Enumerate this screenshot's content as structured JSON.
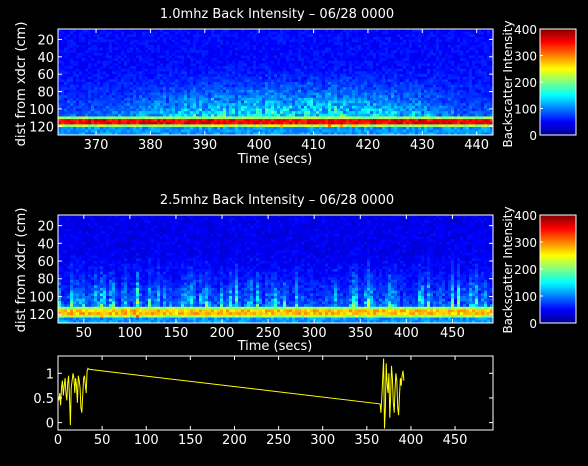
{
  "chart_data": [
    {
      "type": "heatmap",
      "title": "1.0mhz Back Intensity – 06/28 0000",
      "xlabel": "Time (secs)",
      "ylabel": "dist from xdcr (cm)",
      "xlim": [
        363,
        443
      ],
      "ylim": [
        130,
        8
      ],
      "y_reversed": true,
      "xticks": [
        370,
        380,
        390,
        400,
        410,
        420,
        430,
        440
      ],
      "yticks": [
        20,
        40,
        60,
        80,
        100,
        120
      ],
      "colorbar": {
        "label": "Backscatter Intensity",
        "min": 0,
        "max": 400,
        "ticks": [
          0,
          100,
          200,
          300,
          400
        ]
      },
      "description_values": {
        "bottom_band_cm": 115,
        "bottom_band_intensity": 330,
        "background_intensity": 40
      }
    },
    {
      "type": "heatmap",
      "title": "2.5mhz Back Intensity  – 06/28 0000",
      "xlabel": "Time (secs)",
      "ylabel": "dist from xdcr (cm)",
      "xlim": [
        22,
        494
      ],
      "ylim": [
        130,
        8
      ],
      "y_reversed": true,
      "xticks": [
        50,
        100,
        150,
        200,
        250,
        300,
        350,
        400,
        450
      ],
      "yticks": [
        20,
        40,
        60,
        80,
        100,
        120
      ],
      "colorbar": {
        "label": "Backscatter Intensity",
        "min": 0,
        "max": 400,
        "ticks": [
          0,
          100,
          200,
          300,
          400
        ]
      },
      "description_values": {
        "bottom_band_cm": 117,
        "bottom_band_intensity": 250,
        "background_intensity": 30
      }
    },
    {
      "type": "line",
      "title": "",
      "xlabel": "",
      "ylabel": "",
      "xlim": [
        0,
        493
      ],
      "ylim": [
        -0.15,
        1.35
      ],
      "xticks": [
        0,
        50,
        100,
        150,
        200,
        250,
        300,
        350,
        400,
        450
      ],
      "yticks": [
        0,
        0.5,
        1
      ],
      "ytick_labels": [
        "0",
        "0.5",
        "1"
      ],
      "color": "#ffff00",
      "series": [
        {
          "x": [
            1,
            2,
            3,
            4,
            5,
            6,
            7,
            8,
            9,
            10,
            11,
            12,
            13,
            14,
            15,
            16,
            17,
            18,
            19,
            20,
            21,
            22,
            23,
            24,
            25,
            26,
            27,
            28,
            29,
            30,
            31,
            32,
            33,
            34,
            35,
            365,
            366,
            367,
            368,
            369,
            370,
            371,
            372,
            373,
            374,
            375,
            376,
            377,
            378,
            379,
            380,
            381,
            382,
            383,
            384,
            385,
            386,
            387,
            388,
            389,
            390,
            391,
            392
          ],
          "y": [
            0.45,
            0.6,
            0.35,
            0.7,
            0.85,
            0.55,
            0.75,
            0.9,
            0.6,
            0.45,
            0.8,
            0.95,
            0.5,
            -0.05,
            0.7,
            0.85,
            1.0,
            0.9,
            0.6,
            0.9,
            0.75,
            0.4,
            0.95,
            0.85,
            0.7,
            0.3,
            0.2,
            0.55,
            0.9,
            0.95,
            0.75,
            0.6,
            1.05,
            1.1,
            1.08,
            0.38,
            0.2,
            0.5,
            0.9,
            1.3,
            -0.12,
            0.3,
            1.2,
            0.8,
            0.6,
            1.0,
            0.1,
            0.5,
            1.15,
            0.9,
            0.4,
            0.2,
            0.7,
            1.0,
            0.85,
            0.3,
            0.15,
            0.55,
            0.9,
            0.75,
            0.95,
            1.05,
            0.85
          ]
        }
      ]
    }
  ]
}
